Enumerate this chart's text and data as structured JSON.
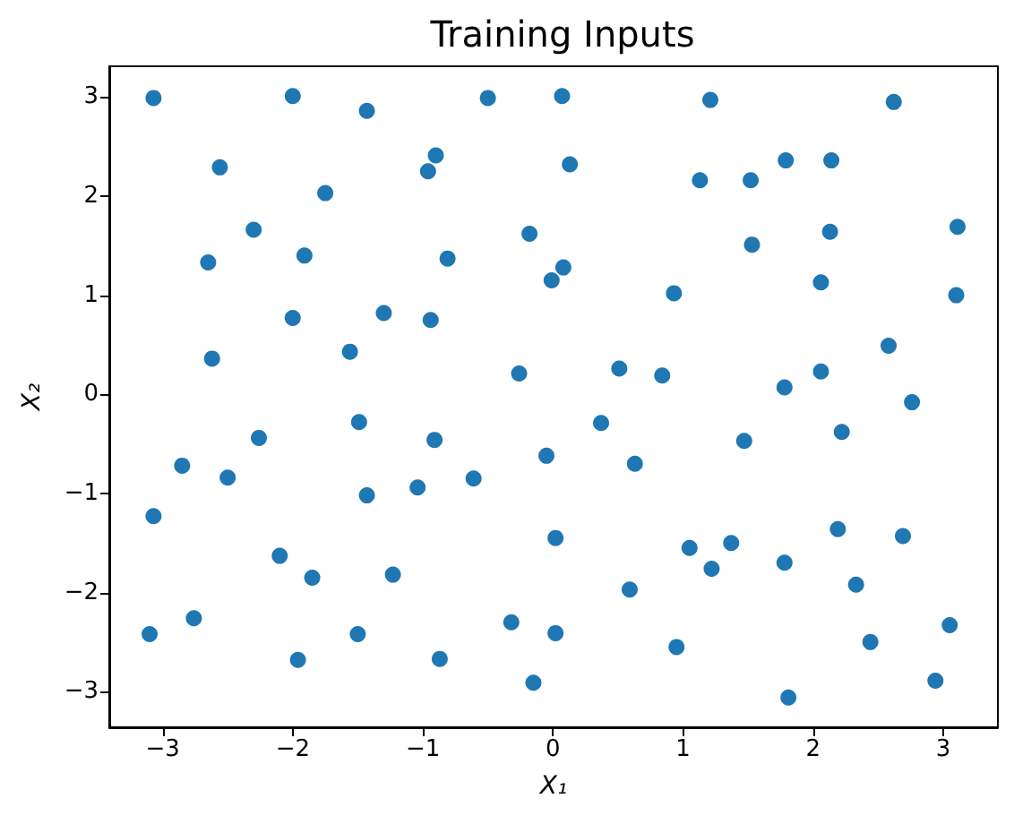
{
  "chart_data": {
    "type": "scatter",
    "title": "Training Inputs",
    "xlabel": "X₁",
    "ylabel": "X₂",
    "color": "#1f77b4",
    "marker": "circle",
    "x": [
      -3.07,
      -2.0,
      -1.43,
      -2.56,
      -1.75,
      -2.3,
      -1.91,
      -2.65,
      -2.0,
      -1.3,
      -2.62,
      -1.56,
      -0.5,
      0.07,
      1.21,
      -0.9,
      -0.96,
      0.13,
      1.13,
      -0.18,
      -0.81,
      0.08,
      -0.01,
      0.93,
      -0.94,
      -0.26,
      0.51,
      0.84,
      2.62,
      1.79,
      2.14,
      1.52,
      3.11,
      2.13,
      1.53,
      2.06,
      3.1,
      2.58,
      2.06,
      1.78,
      2.76,
      -1.49,
      -2.26,
      -2.85,
      -2.5,
      -1.43,
      -3.07,
      -2.1,
      -1.85,
      -1.23,
      -3.1,
      -2.76,
      -1.5,
      -1.96,
      -0.91,
      0.37,
      -0.05,
      0.63,
      -0.61,
      -1.04,
      0.02,
      1.05,
      1.22,
      0.59,
      -0.32,
      0.02,
      0.95,
      -0.87,
      -0.15,
      1.47,
      2.22,
      2.19,
      2.69,
      1.37,
      1.78,
      2.33,
      3.05,
      2.44,
      2.94,
      1.81
    ],
    "values": [
      2.99,
      3.01,
      2.86,
      2.29,
      2.03,
      1.66,
      1.4,
      1.33,
      0.77,
      0.82,
      0.36,
      0.43,
      2.99,
      3.01,
      2.97,
      2.41,
      2.25,
      2.32,
      2.16,
      1.62,
      1.37,
      1.28,
      1.15,
      1.02,
      0.75,
      0.21,
      0.26,
      0.19,
      2.95,
      2.36,
      2.36,
      2.16,
      1.69,
      1.64,
      1.51,
      1.13,
      1.0,
      0.49,
      0.23,
      0.07,
      -0.08,
      -0.28,
      -0.44,
      -0.72,
      -0.84,
      -1.02,
      -1.23,
      -1.63,
      -1.85,
      -1.82,
      -2.42,
      -2.26,
      -2.42,
      -2.68,
      -0.46,
      -0.29,
      -0.62,
      -0.7,
      -0.85,
      -0.94,
      -1.45,
      -1.55,
      -1.76,
      -1.97,
      -2.3,
      -2.41,
      -2.55,
      -2.67,
      -2.91,
      -0.47,
      -0.38,
      -1.36,
      -1.43,
      -1.5,
      -1.7,
      -1.92,
      -2.33,
      -2.5,
      -2.89,
      -3.06
    ],
    "xlim": [
      -3.41,
      3.42
    ],
    "ylim": [
      -3.36,
      3.31
    ],
    "xticks": [
      -3,
      -2,
      -1,
      0,
      1,
      2,
      3
    ],
    "yticks": [
      -3,
      -2,
      -1,
      0,
      1,
      2,
      3
    ],
    "grid": false
  }
}
